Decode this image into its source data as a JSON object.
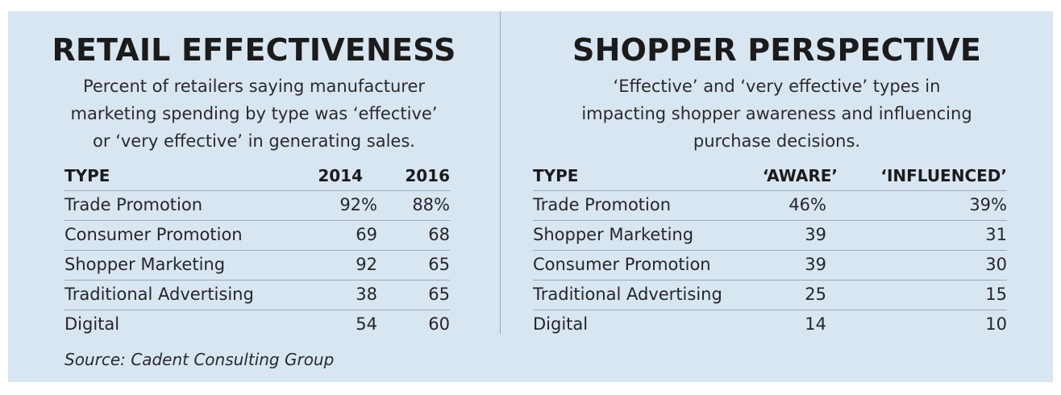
{
  "retail": {
    "title": "RETAIL EFFECTIVENESS",
    "subtitle_lines": [
      "Percent of retailers saying manufacturer",
      "marketing spending by type was ‘effective’",
      "or ‘very effective’ in generating sales."
    ],
    "headers": {
      "type": "TYPE",
      "col1": "2014",
      "col2": "2016"
    },
    "rows": [
      {
        "type": "Trade Promotion",
        "col1": "92%",
        "col2": "88%"
      },
      {
        "type": "Consumer Promotion",
        "col1": "69",
        "col2": "68"
      },
      {
        "type": "Shopper Marketing",
        "col1": "92",
        "col2": "65"
      },
      {
        "type": "Traditional Advertising",
        "col1": "38",
        "col2": "65"
      },
      {
        "type": "Digital",
        "col1": "54",
        "col2": "60"
      }
    ]
  },
  "shopper": {
    "title": "SHOPPER PERSPECTIVE",
    "subtitle_lines": [
      "‘Effective’ and ‘very effective’ types in",
      "impacting shopper awareness and influencing",
      "purchase decisions."
    ],
    "headers": {
      "type": "TYPE",
      "col1": "‘AWARE’",
      "col2": "‘INFLUENCED’"
    },
    "rows": [
      {
        "type": "Trade Promotion",
        "col1": "46%",
        "col2": "39%"
      },
      {
        "type": "Shopper Marketing",
        "col1": "39",
        "col2": "31"
      },
      {
        "type": "Consumer Promotion",
        "col1": "39",
        "col2": "30"
      },
      {
        "type": "Traditional Advertising",
        "col1": "25",
        "col2": "15"
      },
      {
        "type": "Digital",
        "col1": "14",
        "col2": "10"
      }
    ]
  },
  "source": "Source: Cadent Consulting Group"
}
